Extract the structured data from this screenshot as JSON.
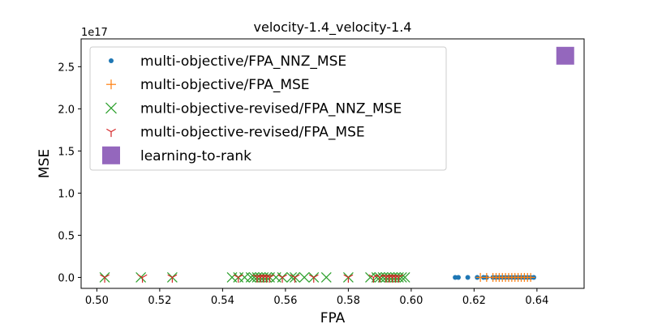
{
  "chart_data": {
    "type": "scatter",
    "title": "velocity-1.4_velocity-1.4",
    "xlabel": "FPA",
    "ylabel": "MSE",
    "y_multiplier_label": "1e17",
    "xlim": [
      0.495,
      0.655
    ],
    "ylim": [
      -0.13,
      2.83
    ],
    "x_ticks": [
      0.5,
      0.52,
      0.54,
      0.56,
      0.58,
      0.6,
      0.62,
      0.64
    ],
    "x_tick_labels": [
      "0.50",
      "0.52",
      "0.54",
      "0.56",
      "0.58",
      "0.60",
      "0.62",
      "0.64"
    ],
    "y_ticks": [
      0.0,
      0.5,
      1.0,
      1.5,
      2.0,
      2.5
    ],
    "y_tick_labels": [
      "0.0",
      "0.5",
      "1.0",
      "1.5",
      "2.0",
      "2.5"
    ],
    "grid": false,
    "legend_position": "top-left",
    "series": [
      {
        "name": "multi-objective/FPA_NNZ_MSE",
        "marker": "circle",
        "color": "#1f77b4",
        "x": [
          0.614,
          0.615,
          0.618,
          0.621,
          0.623,
          0.624,
          0.626,
          0.627,
          0.628,
          0.629,
          0.63,
          0.631,
          0.632,
          0.633,
          0.634,
          0.635,
          0.636,
          0.637,
          0.638,
          0.639
        ],
        "y": [
          0,
          0,
          0,
          0,
          0,
          0,
          0,
          0,
          0,
          0,
          0,
          0,
          0,
          0,
          0,
          0,
          0,
          0,
          0,
          0
        ]
      },
      {
        "name": "multi-objective/FPA_MSE",
        "marker": "plus",
        "color": "#ff7f0e",
        "x": [
          0.622,
          0.624,
          0.626,
          0.627,
          0.628,
          0.629,
          0.63,
          0.631,
          0.632,
          0.633,
          0.634,
          0.635,
          0.636,
          0.637,
          0.638
        ],
        "y": [
          0,
          0,
          0,
          0,
          0,
          0,
          0,
          0,
          0,
          0,
          0,
          0,
          0,
          0,
          0
        ]
      },
      {
        "name": "multi-objective-revised/FPA_NNZ_MSE",
        "marker": "x",
        "color": "#2ca02c",
        "x": [
          0.5025,
          0.514,
          0.524,
          0.543,
          0.545,
          0.547,
          0.549,
          0.55,
          0.551,
          0.552,
          0.553,
          0.554,
          0.555,
          0.557,
          0.559,
          0.562,
          0.563,
          0.566,
          0.569,
          0.573,
          0.58,
          0.587,
          0.589,
          0.59,
          0.591,
          0.592,
          0.593,
          0.594,
          0.595,
          0.596,
          0.597,
          0.598
        ],
        "y": [
          0,
          0,
          0,
          0,
          0,
          0,
          0,
          0,
          0,
          0,
          0,
          0,
          0,
          0,
          0,
          0,
          0,
          0,
          0,
          0,
          0,
          0,
          0,
          0,
          0,
          0,
          0,
          0,
          0,
          0,
          0,
          0
        ]
      },
      {
        "name": "multi-objective-revised/FPA_MSE",
        "marker": "tri_down",
        "color": "#d62728",
        "x": [
          0.5025,
          0.5145,
          0.524,
          0.545,
          0.551,
          0.552,
          0.553,
          0.554,
          0.555,
          0.559,
          0.563,
          0.569,
          0.58,
          0.588,
          0.59,
          0.592,
          0.593,
          0.594,
          0.595,
          0.596
        ],
        "y": [
          0,
          0,
          0,
          0,
          0,
          0,
          0,
          0,
          0,
          0,
          0,
          0,
          0,
          0,
          0,
          0,
          0,
          0,
          0,
          0
        ]
      },
      {
        "name": "learning-to-rank",
        "marker": "square",
        "color": "#9467bd",
        "x": [
          0.649
        ],
        "y": [
          2.63
        ]
      }
    ]
  }
}
